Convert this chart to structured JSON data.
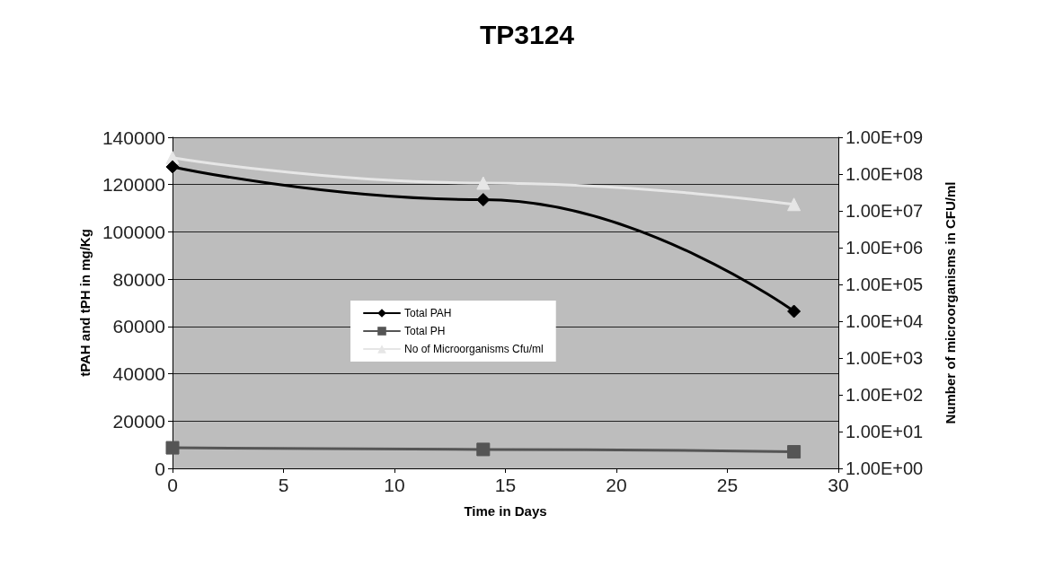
{
  "chart_data": {
    "type": "line",
    "title": "TP3124",
    "xlabel": "Time in Days",
    "ylabel": "tPAH and tPH in mg/Kg",
    "y2label": "Number of microorganisms in CFU/ml",
    "x": [
      0,
      14,
      28
    ],
    "series": [
      {
        "name": "Total PAH",
        "color": "#000000",
        "marker": "diamond",
        "values": [
          127500,
          113600,
          66400
        ]
      },
      {
        "name": "Total PH",
        "color": "#555555",
        "marker": "square",
        "values": [
          8700,
          8000,
          7000
        ]
      },
      {
        "name": "No of Microorganisms Cfu/ml",
        "color": "#e6e6e6",
        "marker": "triangle",
        "axis": "y2",
        "values": [
          280000000,
          57000000,
          15000000
        ]
      }
    ],
    "xlim": [
      0,
      30
    ],
    "xticks": [
      0,
      5,
      10,
      15,
      20,
      25,
      30
    ],
    "ylim": [
      0,
      140000
    ],
    "yticks": [
      0,
      20000,
      40000,
      60000,
      80000,
      100000,
      120000,
      140000
    ],
    "y2lim": [
      1,
      1000000000
    ],
    "log": "y2",
    "y2ticks": [
      {
        "value": 1,
        "label": "1.00E+00"
      },
      {
        "value": 10,
        "label": "1.00E+01"
      },
      {
        "value": 100,
        "label": "1.00E+02"
      },
      {
        "value": 1000,
        "label": "1.00E+03"
      },
      {
        "value": 10000,
        "label": "1.00E+04"
      },
      {
        "value": 100000,
        "label": "1.00E+05"
      },
      {
        "value": 1000000,
        "label": "1.00E+06"
      },
      {
        "value": 10000000,
        "label": "1.00E+07"
      },
      {
        "value": 100000000,
        "label": "1.00E+08"
      },
      {
        "value": 1000000000,
        "label": "1.00E+09"
      }
    ],
    "grid": "y",
    "legend": "center",
    "line_style": "solid"
  }
}
